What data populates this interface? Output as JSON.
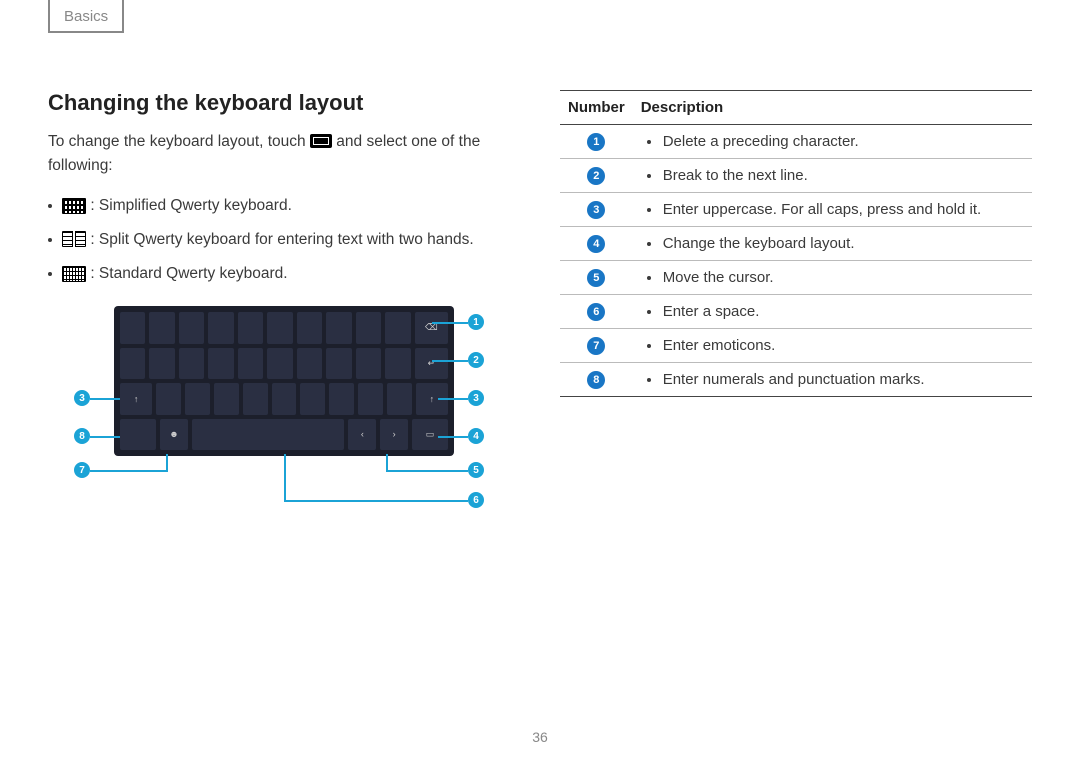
{
  "header": "Basics",
  "page_number": "36",
  "left": {
    "heading": "Changing the keyboard layout",
    "intro_before": "To change the keyboard layout, touch ",
    "intro_after": " and select one of the following:",
    "options": [
      {
        "icon": "simplified",
        "text": ": Simplified Qwerty keyboard."
      },
      {
        "icon": "split",
        "text": ": Split Qwerty keyboard for entering text with two hands."
      },
      {
        "icon": "standard",
        "text": ": Standard Qwerty keyboard."
      }
    ],
    "callouts": {
      "right": [
        "1",
        "2",
        "3",
        "4",
        "5",
        "6"
      ],
      "left": [
        "3",
        "8",
        "7"
      ]
    },
    "colors": {
      "marker_bg": "#1ba3d6",
      "keyboard_bg": "#1c1f2b",
      "key_bg": "#2a2f42"
    }
  },
  "table": {
    "headers": [
      "Number",
      "Description"
    ],
    "rows": [
      {
        "n": "1",
        "d": "Delete a preceding character."
      },
      {
        "n": "2",
        "d": "Break to the next line."
      },
      {
        "n": "3",
        "d": "Enter uppercase. For all caps, press and hold it."
      },
      {
        "n": "4",
        "d": "Change the keyboard layout."
      },
      {
        "n": "5",
        "d": "Move the cursor."
      },
      {
        "n": "6",
        "d": "Enter a space."
      },
      {
        "n": "7",
        "d": "Enter emoticons."
      },
      {
        "n": "8",
        "d": "Enter numerals and punctuation marks."
      }
    ],
    "circle_color": "#1976c5"
  }
}
